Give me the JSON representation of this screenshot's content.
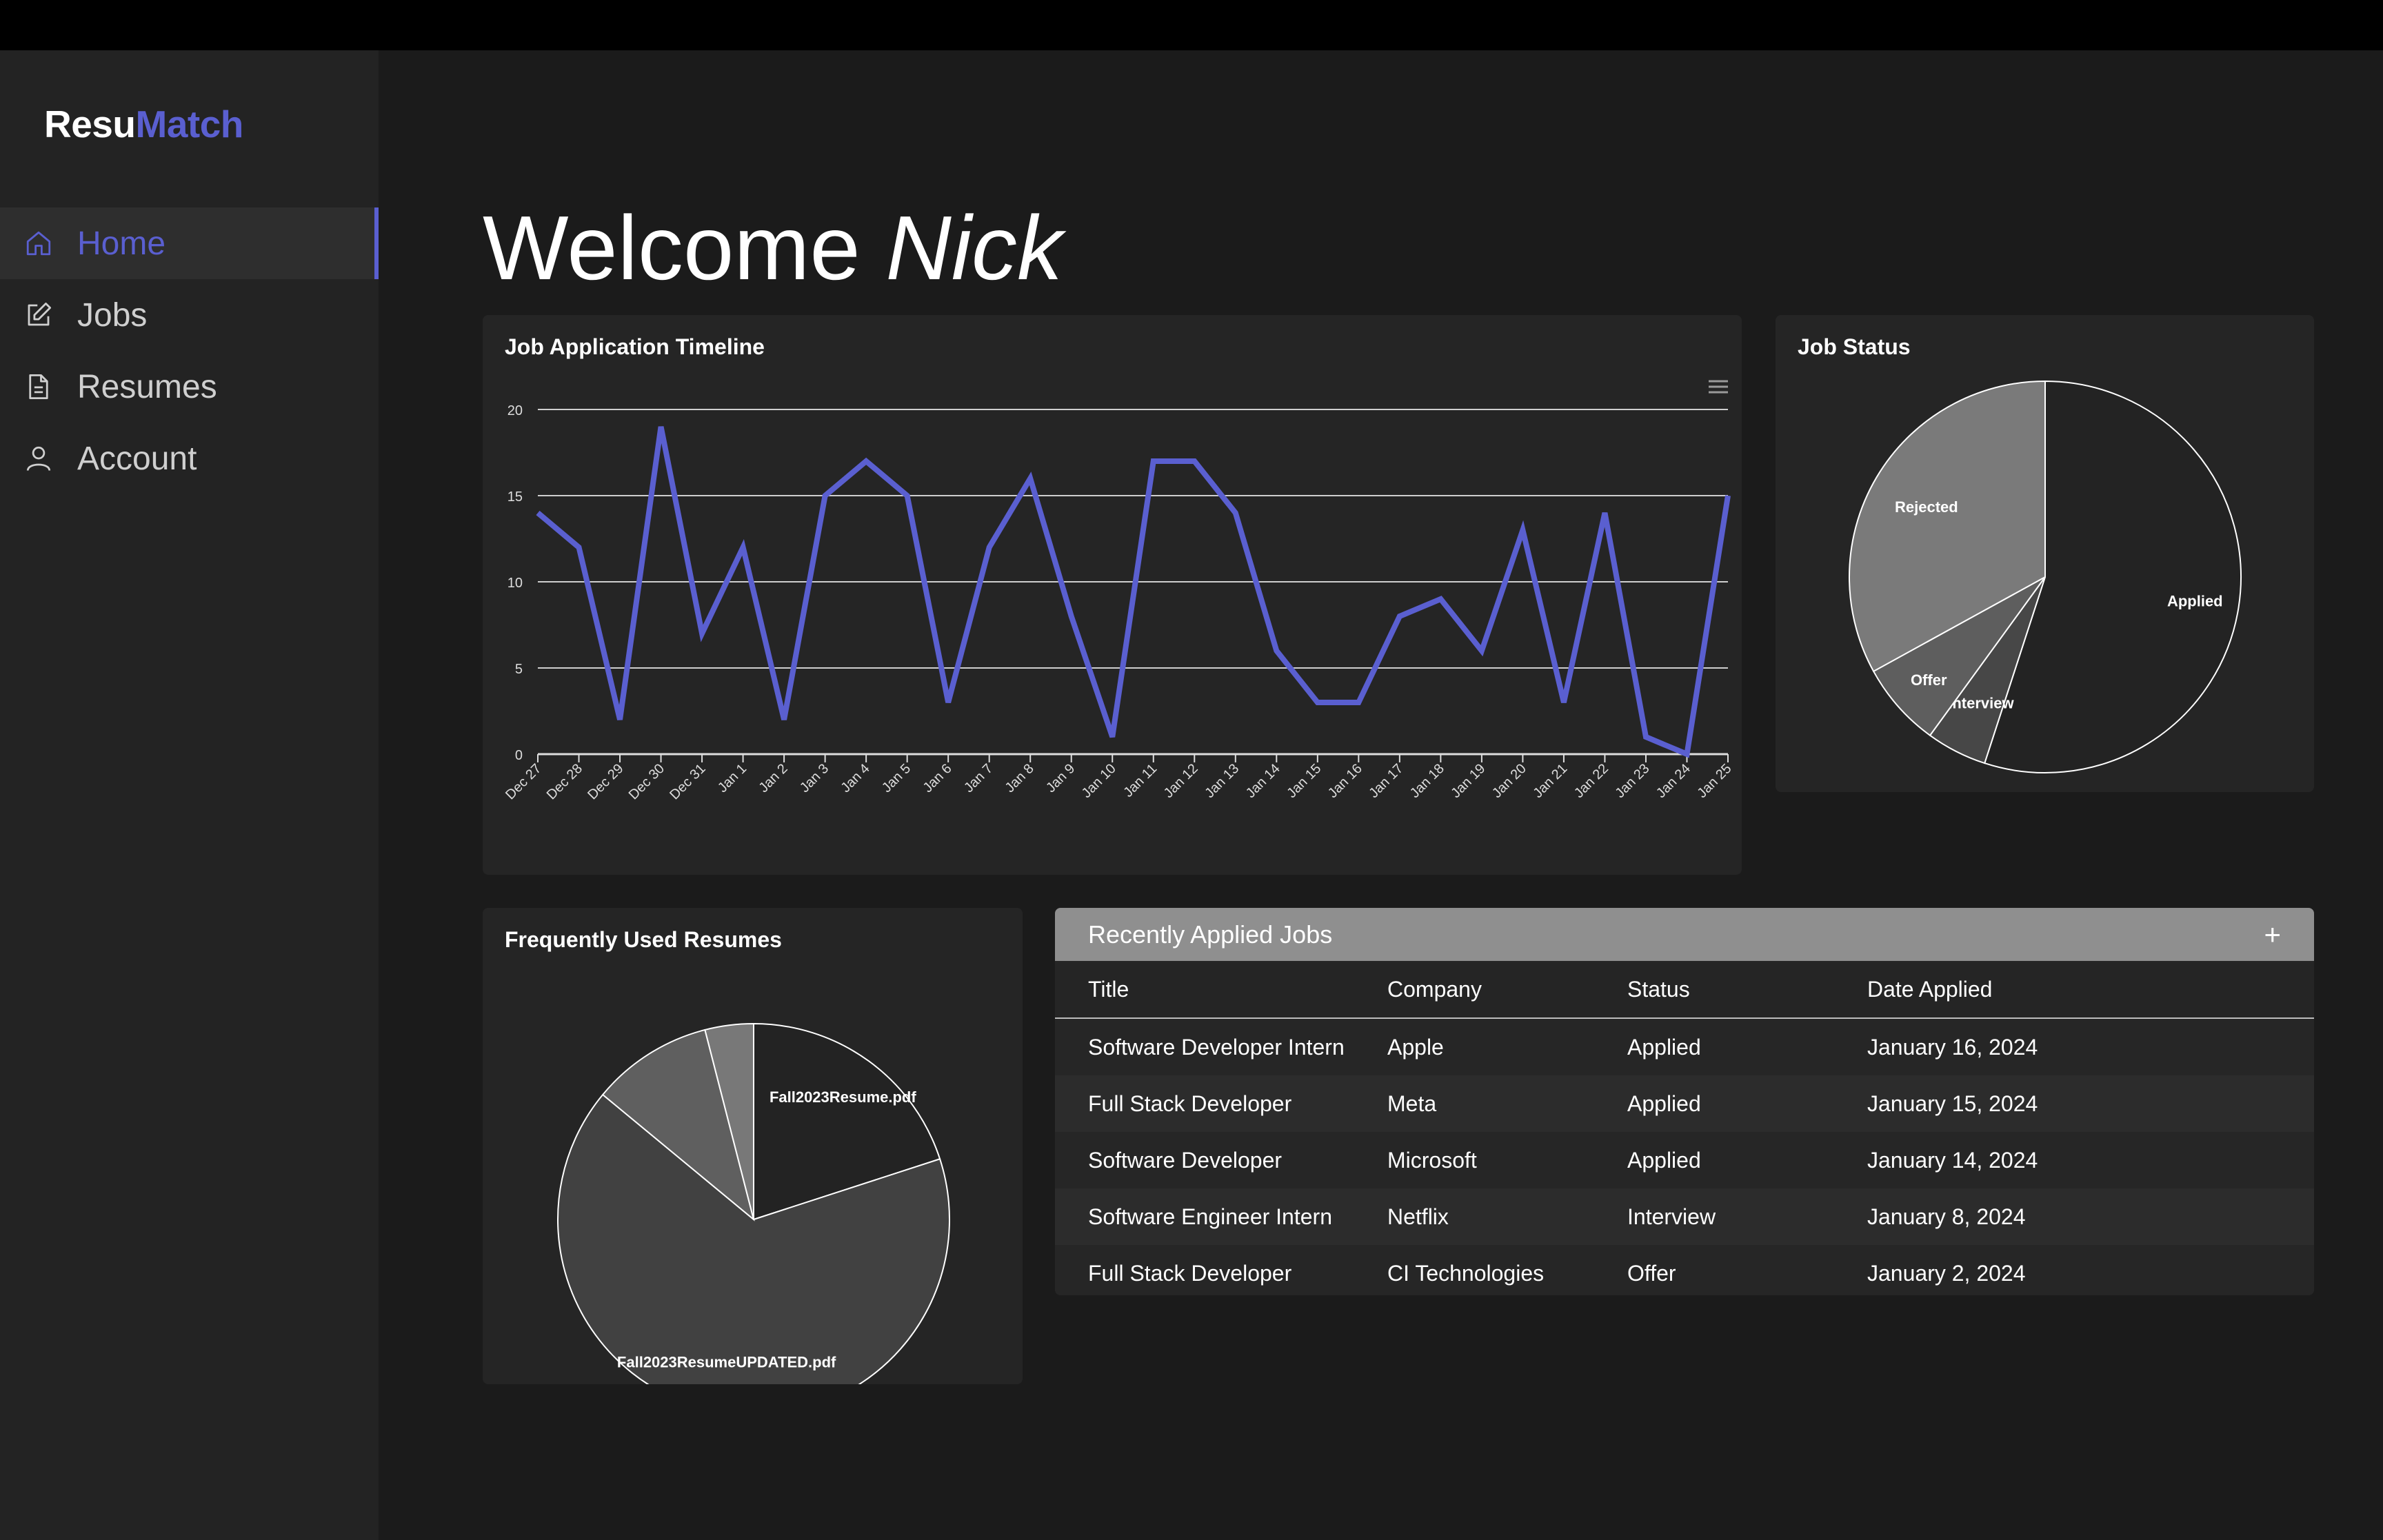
{
  "app": {
    "brand_part1": "Resu",
    "brand_part2": "Match",
    "accent": "#5a5fd0"
  },
  "sidebar": {
    "items": [
      {
        "label": "Home",
        "icon": "home-icon",
        "active": true
      },
      {
        "label": "Jobs",
        "icon": "edit-icon"
      },
      {
        "label": "Resumes",
        "icon": "document-icon"
      },
      {
        "label": "Account",
        "icon": "user-icon"
      }
    ]
  },
  "header": {
    "welcome": "Welcome",
    "user": "Nick"
  },
  "cards": {
    "timeline_title": "Job Application Timeline",
    "status_title": "Job Status",
    "resumes_title": "Frequently Used Resumes"
  },
  "jobs": {
    "title": "Recently Applied Jobs",
    "add_label": "+",
    "columns": [
      "Title",
      "Company",
      "Status",
      "Date Applied"
    ],
    "rows": [
      [
        "Software Developer Intern",
        "Apple",
        "Applied",
        "January 16, 2024"
      ],
      [
        "Full Stack Developer",
        "Meta",
        "Applied",
        "January 15, 2024"
      ],
      [
        "Software Developer",
        "Microsoft",
        "Applied",
        "January 14, 2024"
      ],
      [
        "Software Engineer Intern",
        "Netflix",
        "Interview",
        "January 8, 2024"
      ],
      [
        "Full Stack Developer",
        "CI Technologies",
        "Offer",
        "January 2, 2024"
      ]
    ]
  },
  "chart_data": [
    {
      "type": "line",
      "title": "Job Application Timeline",
      "categories": [
        "Dec 27",
        "Dec 28",
        "Dec 29",
        "Dec 30",
        "Dec 31",
        "Jan 1",
        "Jan 2",
        "Jan 3",
        "Jan 4",
        "Jan 5",
        "Jan 6",
        "Jan 7",
        "Jan 8",
        "Jan 9",
        "Jan 10",
        "Jan 11",
        "Jan 12",
        "Jan 13",
        "Jan 14",
        "Jan 15",
        "Jan 16",
        "Jan 17",
        "Jan 18",
        "Jan 19",
        "Jan 20",
        "Jan 21",
        "Jan 22",
        "Jan 23",
        "Jan 24",
        "Jan 25"
      ],
      "values": [
        14,
        12,
        2,
        19,
        7,
        12,
        2,
        15,
        17,
        15,
        3,
        12,
        16,
        8,
        1,
        17,
        17,
        14,
        6,
        3,
        3,
        8,
        9,
        6,
        13,
        3,
        14,
        1,
        0,
        15
      ],
      "ylim": [
        0,
        20
      ],
      "yticks": [
        0,
        5,
        10,
        15,
        20
      ],
      "grid": true,
      "color": "#5a5fd0"
    },
    {
      "type": "pie",
      "title": "Job Status",
      "labels": [
        "Applied",
        "Interview",
        "Offer",
        "Rejected"
      ],
      "values": [
        55,
        5,
        7,
        33
      ],
      "colors": [
        "#232323",
        "#474747",
        "#5e5e5e",
        "#7a7a7a"
      ]
    },
    {
      "type": "pie",
      "title": "Frequently Used Resumes",
      "labels": [
        "Fall2023Resume.pdf",
        "Fall2023ResumeUPDATED.pdf",
        "",
        ""
      ],
      "values": [
        20,
        66,
        10,
        4
      ],
      "colors": [
        "#232323",
        "#414141",
        "#5f5f5f",
        "#787878"
      ]
    }
  ]
}
